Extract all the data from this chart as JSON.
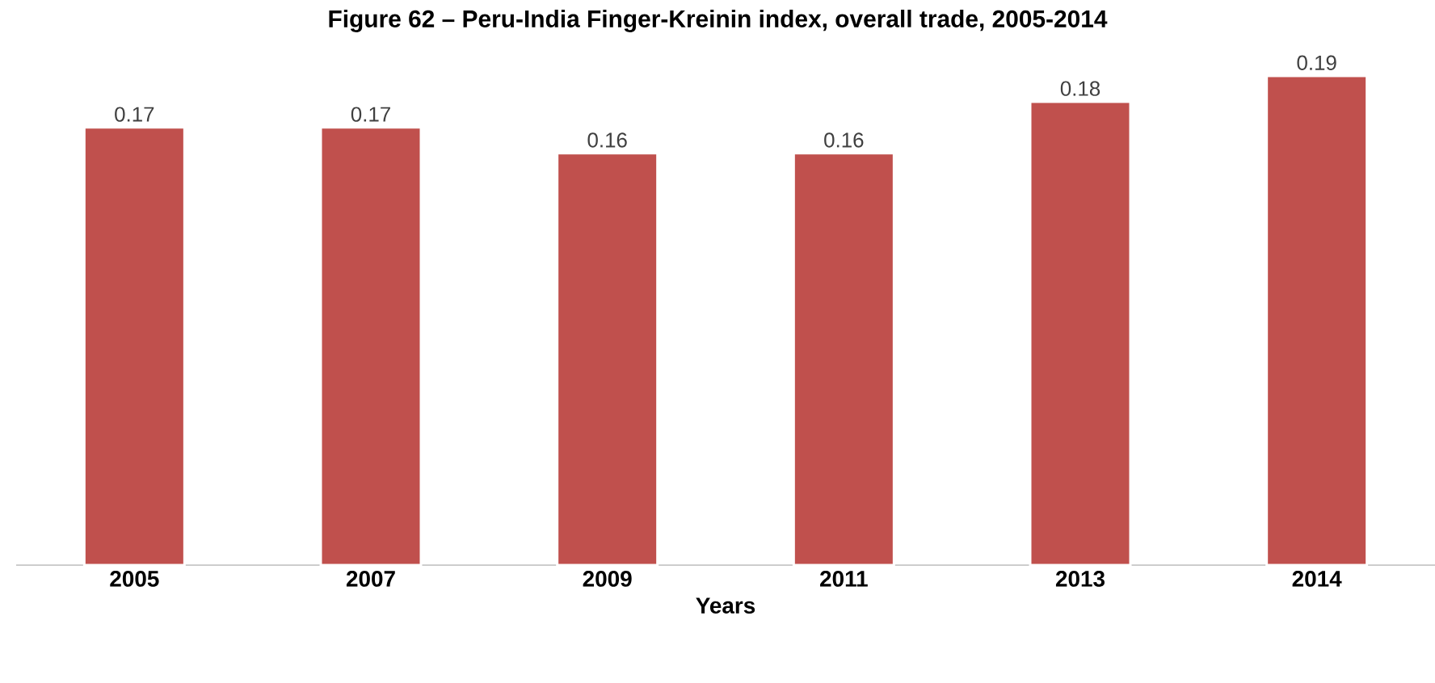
{
  "chart_data": {
    "type": "bar",
    "title": "Figure 62 – Peru-India Finger-Kreinin index, overall trade, 2005-2014",
    "xlabel": "Years",
    "categories": [
      "2005",
      "2007",
      "2009",
      "2011",
      "2013",
      "2014"
    ],
    "values": [
      0.17,
      0.17,
      0.16,
      0.16,
      0.18,
      0.19
    ],
    "color": "#c0504d",
    "data_labels": true,
    "tick_labels": "x"
  }
}
